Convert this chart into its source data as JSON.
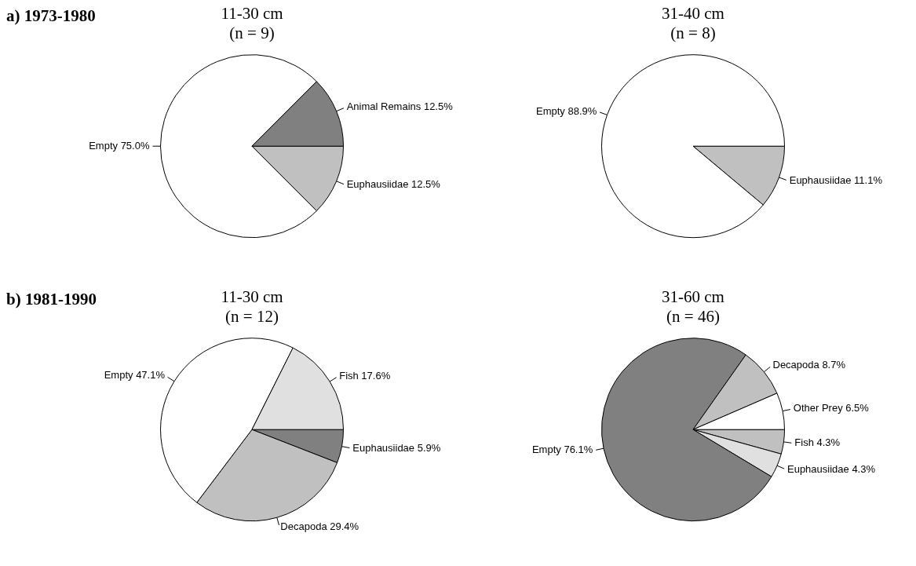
{
  "chart_data": [
    {
      "type": "pie",
      "title": "11-30 cm",
      "subtitle": "(n = 9)",
      "annotations": [
        "a) 1973-1980"
      ],
      "categories": [
        "Euphausiidae",
        "Empty",
        "Animal Remains"
      ],
      "values": [
        12.5,
        75.0,
        12.5
      ],
      "value_labels": [
        "12.5%",
        "75.0%",
        "12.5%"
      ],
      "colors": [
        "#c0c0c0",
        "#ffffff",
        "#808080"
      ]
    },
    {
      "type": "pie",
      "title": "31-40 cm",
      "subtitle": "(n = 8)",
      "categories": [
        "Euphausiidae",
        "Empty"
      ],
      "values": [
        11.1,
        88.9
      ],
      "value_labels": [
        "11.1%",
        "88.9%"
      ],
      "colors": [
        "#c0c0c0",
        "#ffffff"
      ]
    },
    {
      "type": "pie",
      "title": "11-30 cm",
      "subtitle": "(n = 12)",
      "annotations": [
        "b) 1981-1990"
      ],
      "categories": [
        "Euphausiidae",
        "Decapoda",
        "Empty",
        "Fish"
      ],
      "values": [
        5.9,
        29.4,
        47.1,
        17.6
      ],
      "value_labels": [
        "5.9%",
        "29.4%",
        "47.1%",
        "17.6%"
      ],
      "colors": [
        "#808080",
        "#c0c0c0",
        "#ffffff",
        "#e0e0e0"
      ]
    },
    {
      "type": "pie",
      "title": "31-60 cm",
      "subtitle": "(n = 46)",
      "categories": [
        "Fish",
        "Euphausiidae",
        "Empty",
        "Decapoda",
        "Other Prey"
      ],
      "values": [
        4.3,
        4.3,
        76.1,
        8.7,
        6.5
      ],
      "value_labels": [
        "4.3%",
        "4.3%",
        "76.1%",
        "8.7%",
        "6.5%"
      ],
      "colors": [
        "#c0c0c0",
        "#e0e0e0",
        "#808080",
        "#c0c0c0",
        "#ffffff"
      ]
    }
  ]
}
